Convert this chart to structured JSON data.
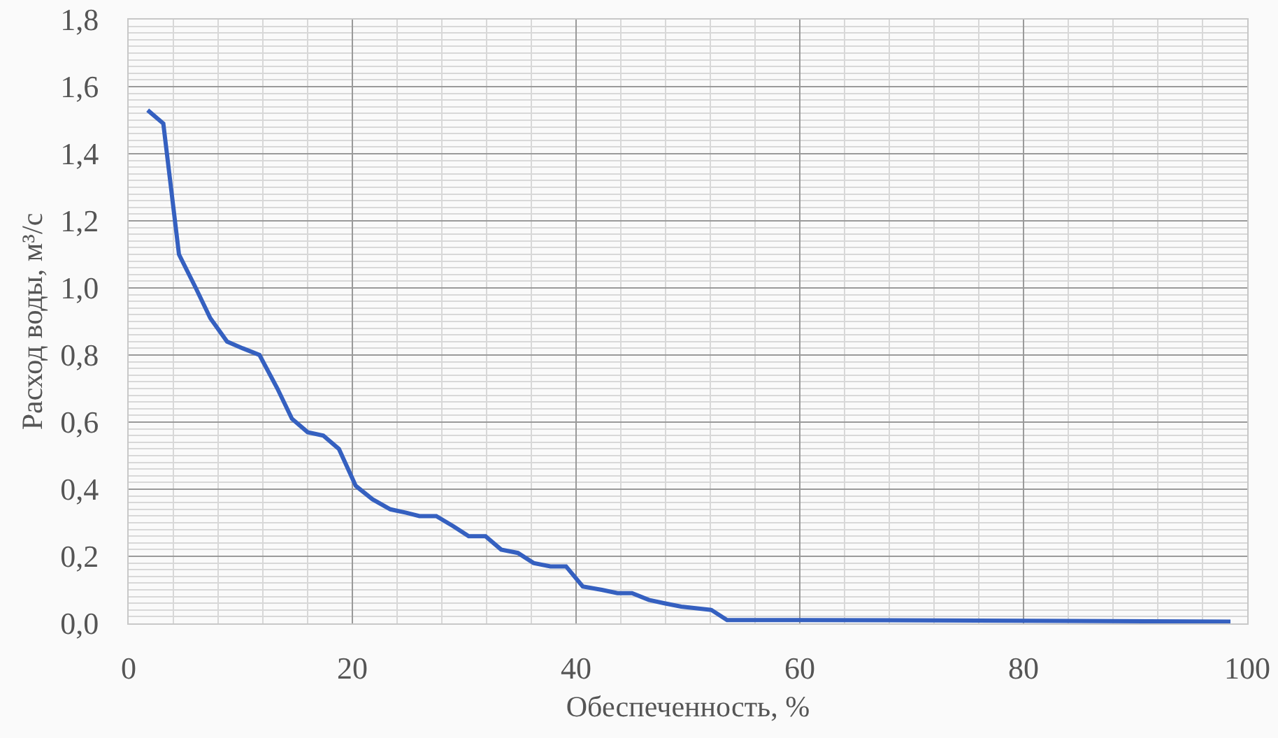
{
  "chart_data": {
    "type": "line",
    "xlabel": "Обеспеченность, %",
    "ylabel": "Расход воды, м³/с",
    "x": [
      1.7,
      3.1,
      4.5,
      6.0,
      7.3,
      8.8,
      10.2,
      11.7,
      13.3,
      14.6,
      16.0,
      17.4,
      18.8,
      20.3,
      21.8,
      23.4,
      24.8,
      26.0,
      27.5,
      29.0,
      30.4,
      31.9,
      33.3,
      34.8,
      36.2,
      37.7,
      39.1,
      40.6,
      42.3,
      43.7,
      45.0,
      46.5,
      47.9,
      49.4,
      52.1,
      53.5,
      60,
      80,
      98.5
    ],
    "values": [
      1.53,
      1.49,
      1.1,
      1.0,
      0.91,
      0.84,
      0.82,
      0.8,
      0.7,
      0.61,
      0.57,
      0.56,
      0.52,
      0.41,
      0.37,
      0.34,
      0.33,
      0.32,
      0.32,
      0.29,
      0.26,
      0.26,
      0.22,
      0.21,
      0.18,
      0.17,
      0.17,
      0.11,
      0.1,
      0.09,
      0.09,
      0.07,
      0.06,
      0.05,
      0.04,
      0.01,
      0.01,
      0.008,
      0.005
    ],
    "color": "#3560c0",
    "line_style": "solid",
    "xlim": [
      0,
      100
    ],
    "ylim": [
      0,
      1.8
    ],
    "xticks": [
      0,
      20,
      40,
      60,
      80,
      100
    ],
    "yticks": [
      {
        "value": 0,
        "label": "0,0"
      },
      {
        "value": 0.2,
        "label": "0,2"
      },
      {
        "value": 0.4,
        "label": "0,4"
      },
      {
        "value": 0.6,
        "label": "0,6"
      },
      {
        "value": 0.8,
        "label": "0,8"
      },
      {
        "value": 1.0,
        "label": "1,0"
      },
      {
        "value": 1.2,
        "label": "1,2"
      },
      {
        "value": 1.4,
        "label": "1,4"
      },
      {
        "value": 1.6,
        "label": "1,6"
      },
      {
        "value": 1.8,
        "label": "1,8"
      }
    ],
    "grid": true
  }
}
